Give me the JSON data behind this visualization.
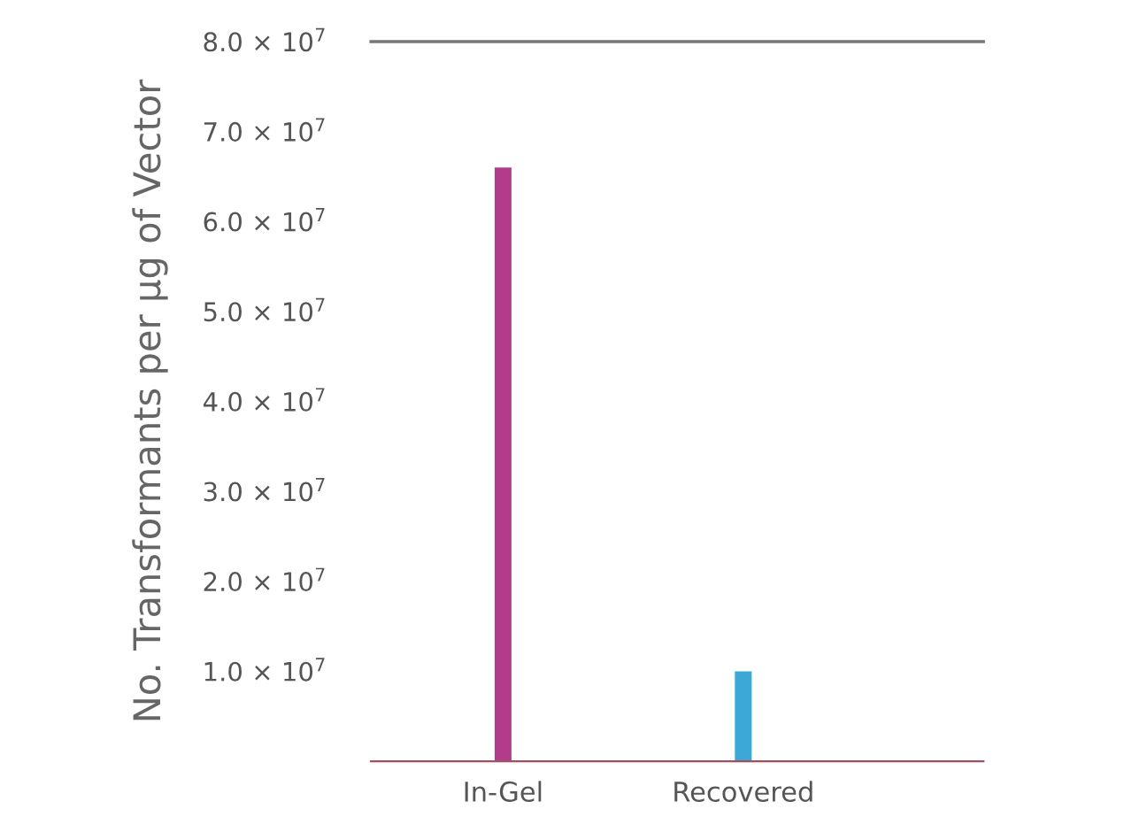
{
  "chart_data": {
    "type": "bar",
    "ylabel": "No. Transformants per µg of Vector",
    "categories": [
      "In-Gel",
      "Recovered"
    ],
    "values": [
      66000000.0,
      10000000.0
    ],
    "colors": [
      "#b23b8c",
      "#3ca8d8"
    ],
    "ylim": [
      0,
      80000000.0
    ],
    "yticks": [
      {
        "value": 0,
        "label": null
      },
      {
        "value": 10000000.0,
        "label": "1.0 × 10$^{7}$"
      },
      {
        "value": 20000000.0,
        "label": "2.0 × 10$^{7}$"
      },
      {
        "value": 30000000.0,
        "label": "3.0 × 10$^{7}$"
      },
      {
        "value": 40000000.0,
        "label": "4.0 × 10$^{7}$"
      },
      {
        "value": 50000000.0,
        "label": "5.0 × 10$^{7}$"
      },
      {
        "value": 60000000.0,
        "label": "6.0 × 10$^{7}$"
      },
      {
        "value": 70000000.0,
        "label": "7.0 × 10$^{7}$"
      },
      {
        "value": 80000000.0,
        "label": "8.0 × 10$^{7}$"
      }
    ],
    "grid": false,
    "legend": false
  }
}
